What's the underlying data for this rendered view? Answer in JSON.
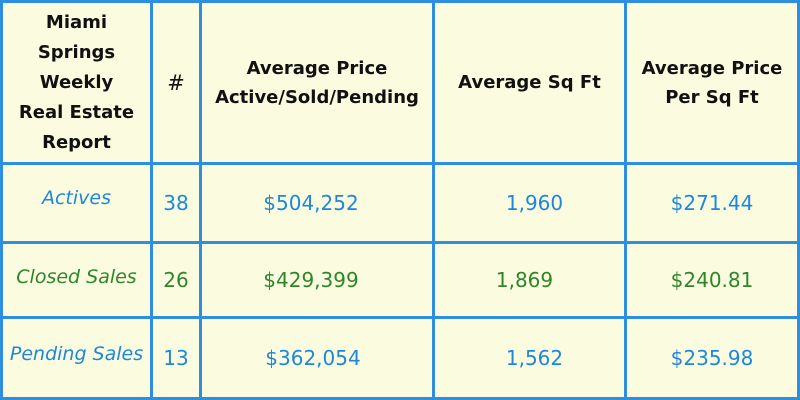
{
  "colors": {
    "background": "#fbfbdf",
    "grid": "#2e8fe0",
    "header_text": "#111111",
    "blue_text": "#1d87de",
    "green_text": "#2e8629"
  },
  "header": {
    "report_title": "Miami\nSprings\nWeekly\nReal Estate\nReport",
    "count": "#",
    "avg_price": "Average Price\nActive/Sold/Pending",
    "avg_sqft": "Average Sq Ft",
    "avg_price_per_sqft": "Average Price\nPer Sq Ft"
  },
  "rows": [
    {
      "label": "Actives",
      "count": "38",
      "avg_price": "$504,252",
      "avg_sqft": "1,960",
      "avg_price_per_sqft": "$271.44",
      "color": "blue"
    },
    {
      "label": "Closed Sales",
      "count": "26",
      "avg_price": "$429,399",
      "avg_sqft": "1,869",
      "avg_price_per_sqft": "$240.81",
      "color": "green"
    },
    {
      "label": "Pending Sales",
      "count": "13",
      "avg_price": "$362,054",
      "avg_sqft": "1,562",
      "avg_price_per_sqft": "$235.98",
      "color": "blue"
    }
  ]
}
